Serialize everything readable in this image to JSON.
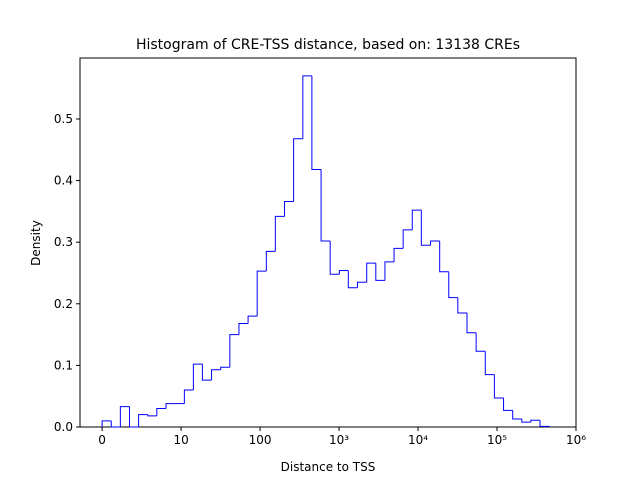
{
  "chart_data": {
    "type": "histogram",
    "title": "Histogram of CRE-TSS distance, based on: 13138 CREs",
    "xlabel": "Distance to TSS",
    "ylabel": "Density",
    "xscale": "symlog",
    "linthresh": 10,
    "color": "#0000ff",
    "bins": [
      0,
      1.16,
      2.31,
      3.47,
      4.62,
      5.78,
      6.93,
      8.09,
      9.24,
      11.0,
      14.3,
      18.6,
      24.3,
      31.7,
      41.4,
      54.0,
      70.5,
      91.9,
      120,
      156,
      204,
      266,
      348,
      453,
      592,
      772,
      1010,
      1310,
      1710,
      2240,
      2920,
      3810,
      4970,
      6480,
      8450,
      11000,
      14400,
      18800,
      24500,
      31900,
      41700,
      54400,
      71000,
      92600,
      121000,
      158000,
      206000,
      268000,
      350000,
      457000
    ],
    "counts": [
      0.01,
      0,
      0.033,
      0,
      0.02,
      0.018,
      0.03,
      0.038,
      0.038,
      0.06,
      0.102,
      0.076,
      0.093,
      0.097,
      0.15,
      0.168,
      0.18,
      0.253,
      0.285,
      0.342,
      0.366,
      0.468,
      0.57,
      0.418,
      0.302,
      0.248,
      0.254,
      0.226,
      0.235,
      0.266,
      0.238,
      0.268,
      0.29,
      0.32,
      0.352,
      0.295,
      0.302,
      0.252,
      0.21,
      0.185,
      0.153,
      0.123,
      0.085,
      0.047,
      0.027,
      0.013,
      0.008,
      0.011,
      0.001
    ],
    "xlim": [
      -2.8,
      1000000
    ],
    "xticks": [
      0,
      10,
      100,
      {
        "value": 1000,
        "label": "10³"
      },
      {
        "value": 10000,
        "label": "10⁴"
      },
      {
        "value": 100000,
        "label": "10⁵"
      },
      {
        "value": 1000000,
        "label": "10⁶"
      }
    ],
    "ylim": [
      0,
      0.599
    ],
    "yticks": [
      {
        "value": 0,
        "label": "0.0"
      },
      0.1,
      0.2,
      0.3,
      0.4,
      0.5
    ]
  }
}
